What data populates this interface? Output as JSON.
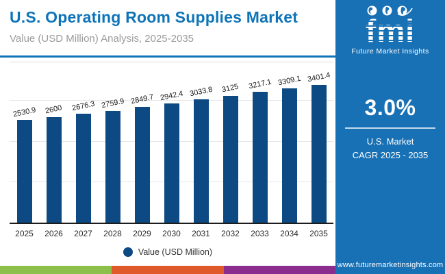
{
  "header": {
    "title": "U.S. Operating Room Supplies Market",
    "subtitle": "Value (USD Million) Analysis, 2025-2035"
  },
  "chart_data": {
    "type": "bar",
    "categories": [
      "2025",
      "2026",
      "2027",
      "2028",
      "2029",
      "2030",
      "2031",
      "2032",
      "2033",
      "2034",
      "2035"
    ],
    "values": [
      2530.9,
      2600,
      2676.3,
      2759.9,
      2849.7,
      2942.4,
      3033.8,
      3125,
      3217.1,
      3309.1,
      3401.4
    ],
    "title": "U.S. Operating Room Supplies Market",
    "xlabel": "",
    "ylabel": "Value (USD Million)",
    "ylim": [
      0,
      4000
    ],
    "gridline_values": [
      1000,
      2000,
      3000
    ],
    "grid": true,
    "legend": [
      "Value (USD Million)"
    ],
    "legend_position": "bottom",
    "bar_color": "#0d4a83",
    "value_labels_shown": true
  },
  "legend": {
    "label": "Value (USD Million)"
  },
  "panel": {
    "logo_text": "fmi",
    "logo_tagline": "Future Market Insights",
    "cagr_value": "3.0%",
    "cagr_line1": "U.S. Market",
    "cagr_line2": "CAGR 2025 - 2035",
    "url": "www.futuremarketinsights.com"
  },
  "colors": {
    "accent_blue": "#0e74b8",
    "panel_blue": "#1971b5",
    "bar_navy": "#0d4a83",
    "stripe_green": "#8dc04a",
    "stripe_orange": "#e0592a",
    "stripe_purple": "#8a2d8c"
  }
}
